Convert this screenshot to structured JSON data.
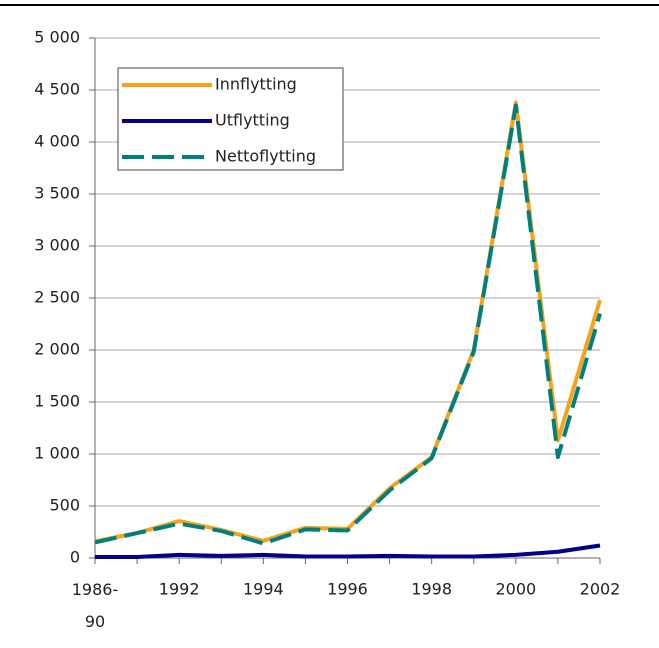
{
  "chart_data": {
    "type": "line",
    "categories": [
      "1986-90",
      null,
      "1992",
      null,
      "1994",
      null,
      "1996",
      null,
      "1998",
      null,
      "2000",
      null,
      "2002"
    ],
    "series": [
      {
        "name": "Innflytting",
        "color": "#f7a21b",
        "values": [
          160,
          240,
          355,
          270,
          165,
          290,
          280,
          670,
          970,
          2000,
          4380,
          1130,
          2480
        ]
      },
      {
        "name": "Utflytting",
        "color": "#00008b",
        "values": [
          10,
          10,
          30,
          20,
          30,
          15,
          15,
          20,
          15,
          15,
          30,
          60,
          120
        ]
      },
      {
        "name": "Nettoflytting",
        "color": "#007f7f",
        "dashed": true,
        "values": [
          150,
          240,
          330,
          260,
          140,
          275,
          265,
          650,
          960,
          1985,
          4350,
          970,
          2350
        ]
      }
    ],
    "ylim": [
      0,
      5000
    ],
    "yticks": [
      0,
      500,
      {
        "value": 1000,
        "label": "1 000"
      },
      {
        "value": 1500,
        "label": "1 500"
      },
      {
        "value": 2000,
        "label": "2 000"
      },
      {
        "value": 2500,
        "label": "2 500"
      },
      {
        "value": 3000,
        "label": "3 000"
      },
      {
        "value": 3500,
        "label": "3 500"
      },
      {
        "value": 4000,
        "label": "4 000"
      },
      {
        "value": 4500,
        "label": "4 500"
      },
      {
        "value": 5000,
        "label": "5 000"
      }
    ],
    "grid": true,
    "legend": "top-left"
  }
}
